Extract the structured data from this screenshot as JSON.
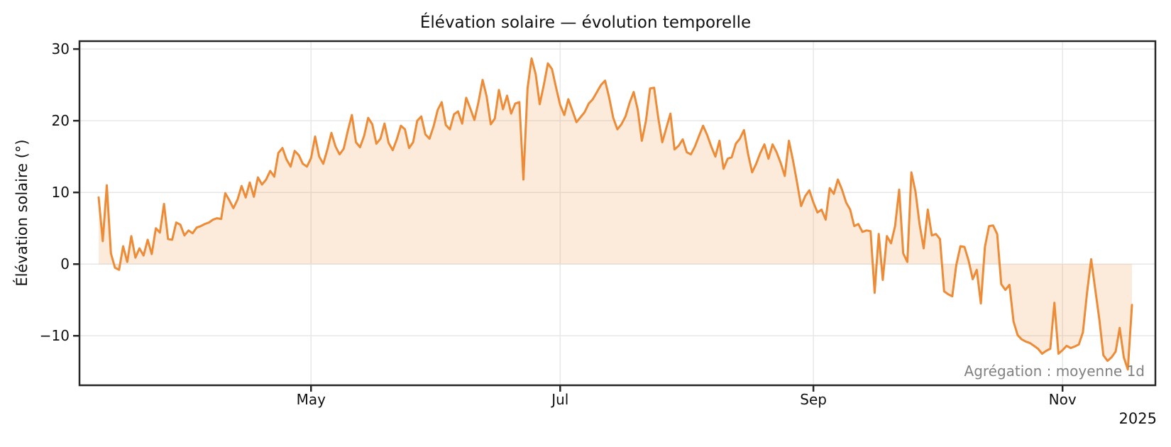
{
  "chart_data": {
    "type": "line",
    "title": "Élévation solaire — évolution temporelle",
    "ylabel": "Élévation solaire (°)",
    "xlabel": "",
    "year_label": "2025",
    "annotation": "Agrégation : moyenne 1d",
    "start_date": "2025-03-10",
    "end_date": "2025-11-18",
    "sampling": "daily mean (1d)",
    "grid": true,
    "legend": "none",
    "ylim": [
      -16.9,
      31.1
    ],
    "yticks": [
      {
        "value": 30,
        "label": "30"
      },
      {
        "value": 20,
        "label": "20"
      },
      {
        "value": 10,
        "label": "10"
      },
      {
        "value": 0,
        "label": "0"
      },
      {
        "value": -10,
        "label": "−10"
      }
    ],
    "xticks": [
      {
        "day": 52,
        "label": "May"
      },
      {
        "day": 113,
        "label": "Jul"
      },
      {
        "day": 175,
        "label": "Sep"
      },
      {
        "day": 236,
        "label": "Nov"
      }
    ],
    "colors": {
      "line": "#ED8B36",
      "fill": "#ED8B36",
      "fill_opacity": 0.18,
      "grid": "#e7e7e7",
      "spine": "#262626",
      "annotation": "#808080",
      "text": "#111111",
      "background": "#ffffff"
    },
    "series": [
      {
        "name": "Élévation solaire (°), moyenne 1d",
        "values": [
          9.3,
          3.2,
          11.0,
          1.5,
          -0.5,
          -0.8,
          2.5,
          0.3,
          3.9,
          0.9,
          2.2,
          1.2,
          3.4,
          1.4,
          5.0,
          4.4,
          8.4,
          3.5,
          3.4,
          5.8,
          5.5,
          4.0,
          4.7,
          4.3,
          5.1,
          5.3,
          5.6,
          5.8,
          6.2,
          6.4,
          6.3,
          9.9,
          8.9,
          7.8,
          9.0,
          10.9,
          9.3,
          11.4,
          9.4,
          12.1,
          11.1,
          11.8,
          13.0,
          12.2,
          15.5,
          16.2,
          14.6,
          13.6,
          15.8,
          15.2,
          14.0,
          13.6,
          14.8,
          17.8,
          15.0,
          14.0,
          16.0,
          18.3,
          16.4,
          15.3,
          16.1,
          18.6,
          20.8,
          17.0,
          16.3,
          17.9,
          20.4,
          19.5,
          16.8,
          17.5,
          19.6,
          16.9,
          15.9,
          17.4,
          19.3,
          18.8,
          16.2,
          17.0,
          20.0,
          20.6,
          18.1,
          17.5,
          19.2,
          21.5,
          22.6,
          19.4,
          18.8,
          20.9,
          21.3,
          19.6,
          23.2,
          21.7,
          20.1,
          22.6,
          25.7,
          23.4,
          19.5,
          20.3,
          24.3,
          21.6,
          23.5,
          21.0,
          22.4,
          22.6,
          11.8,
          24.5,
          28.7,
          26.5,
          22.3,
          25.0,
          28.0,
          27.2,
          24.6,
          22.2,
          20.8,
          23.0,
          21.4,
          19.8,
          20.5,
          21.2,
          22.4,
          23.0,
          24.0,
          25.0,
          25.6,
          23.2,
          20.4,
          18.8,
          19.5,
          20.6,
          22.5,
          24.0,
          21.5,
          17.2,
          20.0,
          24.5,
          24.6,
          20.5,
          17.0,
          19.0,
          21.0,
          16.0,
          16.5,
          17.4,
          15.6,
          15.3,
          16.4,
          17.9,
          19.3,
          18.0,
          16.4,
          15.0,
          17.2,
          13.3,
          14.7,
          14.9,
          16.8,
          17.5,
          18.7,
          15.4,
          12.8,
          14.0,
          15.5,
          16.7,
          14.7,
          16.7,
          15.6,
          14.1,
          12.3,
          17.2,
          14.5,
          11.4,
          8.1,
          9.5,
          10.3,
          8.6,
          7.2,
          7.6,
          6.2,
          10.6,
          9.8,
          11.8,
          10.4,
          8.6,
          7.6,
          5.3,
          5.6,
          4.5,
          4.7,
          4.6,
          -4.0,
          4.2,
          -2.2,
          3.9,
          2.9,
          5.3,
          10.4,
          1.5,
          0.3,
          12.8,
          10.1,
          5.6,
          2.2,
          7.6,
          4.0,
          4.2,
          3.5,
          -3.8,
          -4.2,
          -4.5,
          -0.1,
          2.5,
          2.4,
          0.5,
          -2.1,
          -0.8,
          -5.5,
          2.4,
          5.3,
          5.4,
          4.2,
          -2.8,
          -3.6,
          -2.9,
          -8.0,
          -9.9,
          -10.5,
          -10.8,
          -11.0,
          -11.4,
          -11.8,
          -12.5,
          -12.1,
          -11.8,
          -5.4,
          -12.5,
          -12.0,
          -11.4,
          -11.7,
          -11.5,
          -11.2,
          -9.5,
          -4.0,
          0.7,
          -3.5,
          -7.7,
          -12.7,
          -13.5,
          -13.0,
          -12.2,
          -8.9,
          -13.0,
          -14.7,
          -5.7
        ]
      }
    ]
  }
}
